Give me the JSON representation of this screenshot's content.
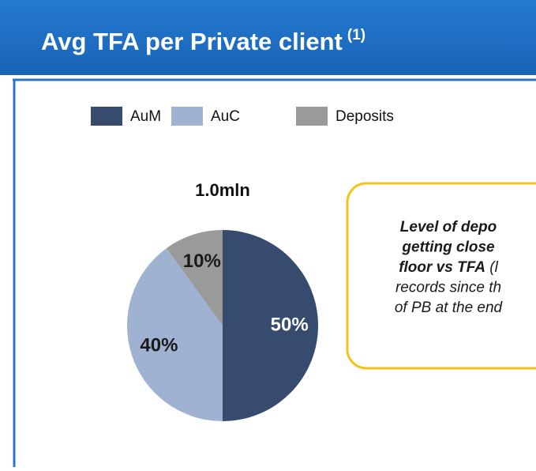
{
  "chart_data": {
    "type": "pie",
    "title": "Avg TFA per Private client",
    "title_note": "(1)",
    "subtitle": "1.0mln",
    "categories": [
      "AuM",
      "AuC",
      "Deposits"
    ],
    "values": [
      50,
      40,
      10
    ],
    "value_labels": [
      "50%",
      "40%",
      "10%"
    ],
    "colors": [
      "#364b6d",
      "#9fb2d2",
      "#9a9a9a"
    ],
    "label_colors": [
      "#ffffff",
      "#1a1a1a",
      "#1a1a1a"
    ],
    "legend": "top"
  },
  "callout": {
    "lines": [
      [
        {
          "text": "Level of depo",
          "bold": true
        }
      ],
      [
        {
          "text": "getting close",
          "bold": true
        }
      ],
      [
        {
          "text": "floor vs TFA",
          "bold": true
        },
        {
          "text": " (l",
          "bold": false
        }
      ],
      [
        {
          "text": "records since th",
          "bold": false
        }
      ],
      [
        {
          "text": "of PB at the end",
          "bold": false
        }
      ]
    ]
  }
}
